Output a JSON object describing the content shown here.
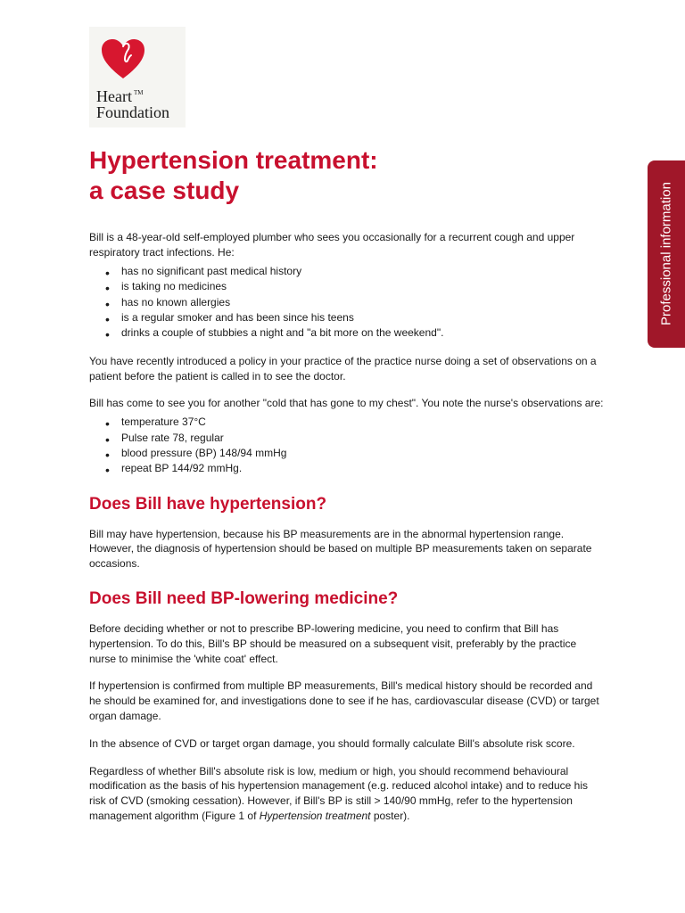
{
  "logo": {
    "line1": "Heart",
    "line2": "Foundation",
    "tm": "TM",
    "heart_color": "#d7172f",
    "bg_color": "#f5f5f2"
  },
  "title": "Hypertension treatment:\na case study",
  "sidebar": {
    "label": "Professional information",
    "bg_color": "#a01729",
    "text_color": "#ffffff"
  },
  "intro": {
    "lead": "Bill is a 48-year-old self-employed plumber who sees you occasionally for a recurrent cough and upper respiratory tract infections. He:",
    "bullets": [
      "has no significant past medical history",
      "is taking no medicines",
      "has no known allergies",
      "is a regular smoker and has been since his teens",
      "drinks a couple of stubbies a night and \"a bit more on the weekend\"."
    ],
    "para2": "You have recently introduced a policy in your practice of the practice nurse doing a set of observations on a patient before the patient is called in to see the doctor.",
    "para3": "Bill has come to see you for another \"cold that has gone to my chest\". You note the nurse's observations are:",
    "obs": [
      "temperature 37°C",
      "Pulse rate 78, regular",
      "blood pressure (BP) 148/94 mmHg",
      "repeat BP 144/92 mmHg."
    ]
  },
  "section1": {
    "heading": "Does Bill have hypertension?",
    "para": "Bill may have hypertension, because his BP measurements are in the abnormal hypertension range. However, the diagnosis of hypertension should be based on multiple BP measurements taken on separate occasions."
  },
  "section2": {
    "heading": "Does Bill need BP-lowering medicine?",
    "para1": "Before deciding whether or not to prescribe BP-lowering medicine, you need to confirm that Bill has hypertension. To do this, Bill's BP should be measured on a subsequent visit, preferably by the practice nurse to minimise the 'white coat' effect.",
    "para2": "If hypertension is confirmed from multiple BP measurements, Bill's medical history should be recorded and he should be examined for, and investigations done to see if he has, cardiovascular disease (CVD) or target organ damage.",
    "para3": "In the absence of CVD or target organ damage, you should formally calculate Bill's absolute risk score.",
    "para4_a": "Regardless of whether Bill's absolute risk is low, medium or high, you should recommend behavioural modification as the basis of his hypertension management (e.g. reduced alcohol intake) and to reduce his risk of CVD (smoking cessation). However, if Bill's BP is still > 140/90 mmHg, refer to the hypertension management algorithm (Figure 1 of ",
    "para4_italic": "Hypertension treatment",
    "para4_b": " poster)."
  },
  "colors": {
    "heading_red": "#c8102e",
    "body_text": "#1a1a1a",
    "background": "#ffffff"
  },
  "typography": {
    "title_fontsize": 28,
    "section_fontsize": 19,
    "body_fontsize": 12
  }
}
